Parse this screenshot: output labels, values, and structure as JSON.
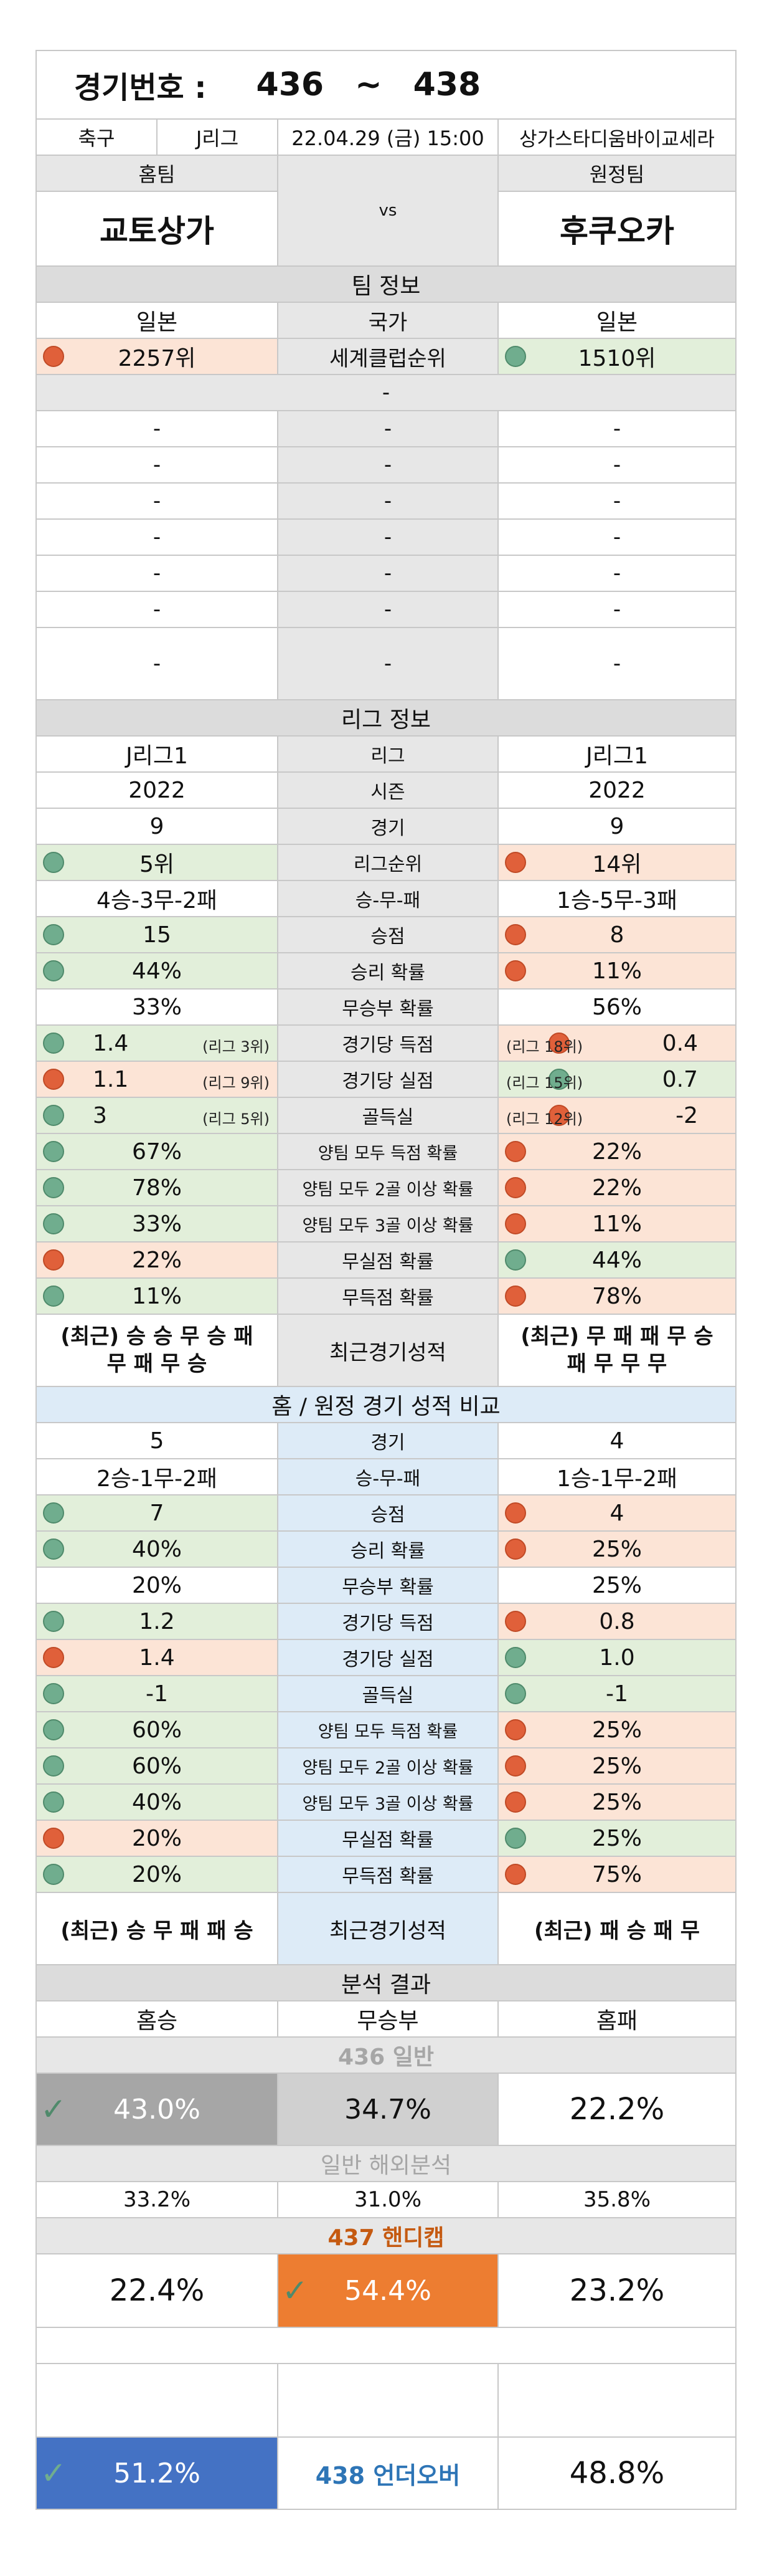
{
  "match": {
    "title_label": "경기번호 :",
    "num_start": "436",
    "tilde": "~",
    "num_end": "438",
    "sport": "축구",
    "league": "J리그",
    "datetime": "22.04.29 (금) 15:00",
    "venue": "상가스타디움바이교세라",
    "home_label": "홈팀",
    "away_label": "원정팀",
    "home_team": "교토상가",
    "vs": "vs",
    "away_team": "후쿠오카"
  },
  "team_info": {
    "section_title": "팀 정보",
    "home_country": "일본",
    "country_label": "국가",
    "away_country": "일본",
    "home_rank": "2257위",
    "rank_label": "세계클럽순위",
    "away_rank": "1510위",
    "dash": "-"
  },
  "league_info": {
    "section_title": "리그 정보",
    "rows": [
      {
        "home": "J리그1",
        "label": "리그",
        "away": "J리그1"
      },
      {
        "home": "2022",
        "label": "시즌",
        "away": "2022"
      },
      {
        "home": "9",
        "label": "경기",
        "away": "9"
      },
      {
        "home": "5위",
        "label": "리그순위",
        "away": "14위"
      },
      {
        "home": "4승-3무-2패",
        "label": "승-무-패",
        "away": "1승-5무-3패"
      },
      {
        "home": "15",
        "label": "승점",
        "away": "8"
      },
      {
        "home": "44%",
        "label": "승리 확률",
        "away": "11%"
      },
      {
        "home": "33%",
        "label": "무승부 확률",
        "away": "56%"
      },
      {
        "home": "1.4",
        "home_rank": "(리그 3위)",
        "label": "경기당 득점",
        "away": "0.4",
        "away_rank": "(리그 18위)"
      },
      {
        "home": "1.1",
        "home_rank": "(리그 9위)",
        "label": "경기당 실점",
        "away": "0.7",
        "away_rank": "(리그 15위)"
      },
      {
        "home": "3",
        "home_rank": "(리그 5위)",
        "label": "골득실",
        "away": "-2",
        "away_rank": "(리그 12위)"
      },
      {
        "home": "67%",
        "label": "양팀 모두 득점 확률",
        "away": "22%"
      },
      {
        "home": "78%",
        "label": "양팀 모두 2골 이상 확률",
        "away": "22%"
      },
      {
        "home": "33%",
        "label": "양팀 모두 3골 이상 확률",
        "away": "11%"
      },
      {
        "home": "22%",
        "label": "무실점 확률",
        "away": "44%"
      },
      {
        "home": "11%",
        "label": "무득점 확률",
        "away": "78%"
      }
    ],
    "recent_label": "최근경기성적",
    "home_recent_1": "(최근) 승 승 무 승 패",
    "home_recent_2": "무 패 무 승",
    "away_recent_1": "(최근) 무 패 패 무 승",
    "away_recent_2": "패 무 무 무"
  },
  "home_away": {
    "section_title": "홈 / 원정 경기 성적 비교",
    "rows": [
      {
        "home": "5",
        "label": "경기",
        "away": "4"
      },
      {
        "home": "2승-1무-2패",
        "label": "승-무-패",
        "away": "1승-1무-2패"
      },
      {
        "home": "7",
        "label": "승점",
        "away": "4"
      },
      {
        "home": "40%",
        "label": "승리 확률",
        "away": "25%"
      },
      {
        "home": "20%",
        "label": "무승부 확률",
        "away": "25%"
      },
      {
        "home": "1.2",
        "label": "경기당 득점",
        "away": "0.8"
      },
      {
        "home": "1.4",
        "label": "경기당 실점",
        "away": "1.0"
      },
      {
        "home": "-1",
        "label": "골득실",
        "away": "-1"
      },
      {
        "home": "60%",
        "label": "양팀 모두 득점 확률",
        "away": "25%"
      },
      {
        "home": "60%",
        "label": "양팀 모두 2골 이상 확률",
        "away": "25%"
      },
      {
        "home": "40%",
        "label": "양팀 모두 3골 이상 확률",
        "away": "25%"
      },
      {
        "home": "20%",
        "label": "무실점 확률",
        "away": "25%"
      },
      {
        "home": "20%",
        "label": "무득점 확률",
        "away": "75%"
      }
    ],
    "recent_label": "최근경기성적",
    "home_recent": "(최근) 승 무 패 패 승",
    "away_recent": "(최근) 패 승 패 무"
  },
  "analysis": {
    "section_title": "분석 결과",
    "home_win": "홈승",
    "draw": "무승부",
    "home_loss": "홈패",
    "general_title": "436 일반",
    "general": [
      "43.0%",
      "34.7%",
      "22.2%"
    ],
    "overseas_title": "일반 해외분석",
    "overseas": [
      "33.2%",
      "31.0%",
      "35.8%"
    ],
    "handicap_title": "437 핸디캡",
    "handicap": [
      "22.4%",
      "54.4%",
      "23.2%"
    ],
    "underover_title": "438 언더오버",
    "underover": [
      "51.2%",
      "48.8%"
    ],
    "check_mark": "✓",
    "colors": {
      "gray_pick": "#a6a6a6",
      "orange_pick": "#ed7d31",
      "blue_pick": "#4472c4",
      "blue_text": "#2e75b6",
      "orange_text": "#c55a11"
    }
  }
}
